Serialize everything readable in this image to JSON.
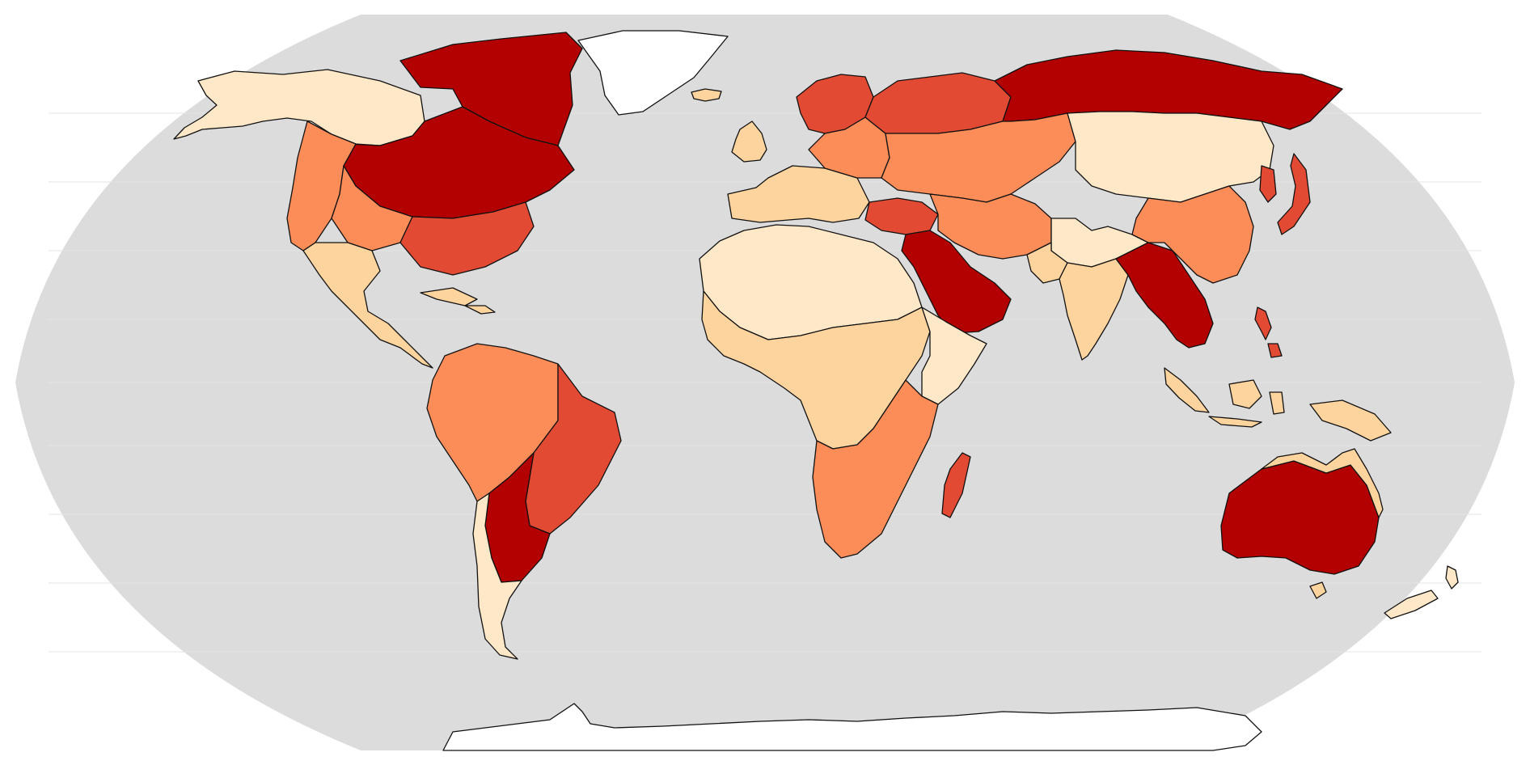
{
  "map": {
    "projection": "Robinson",
    "ocean_color": "#dcdcdc",
    "unclassified_color": "#ffffff",
    "boundary_color": "#111111",
    "legend": "none",
    "classes": [
      {
        "level": 1,
        "color": "#fee8c8"
      },
      {
        "level": 2,
        "color": "#fdd49e"
      },
      {
        "level": 3,
        "color": "#fc8d59"
      },
      {
        "level": 4,
        "color": "#e34a33"
      },
      {
        "level": 5,
        "color": "#b30000"
      }
    ],
    "regions": [
      {
        "id": "alaska-yukon",
        "level": 1
      },
      {
        "id": "canada-north",
        "level": 5
      },
      {
        "id": "canada-east-great-lakes",
        "level": 5
      },
      {
        "id": "us-west-coast",
        "level": 3
      },
      {
        "id": "us-great-basin",
        "level": 3
      },
      {
        "id": "us-midwest-south",
        "level": 4
      },
      {
        "id": "mexico-central-america",
        "level": 2
      },
      {
        "id": "caribbean",
        "level": 2
      },
      {
        "id": "amazon-andes",
        "level": 3
      },
      {
        "id": "brazil-east",
        "level": 4
      },
      {
        "id": "la-plata",
        "level": 5
      },
      {
        "id": "patagonia-chile",
        "level": 1
      },
      {
        "id": "greenland",
        "level": 0
      },
      {
        "id": "iceland",
        "level": 2
      },
      {
        "id": "british-isles",
        "level": 2
      },
      {
        "id": "western-europe",
        "level": 2
      },
      {
        "id": "scandinavia-baltic",
        "level": 4
      },
      {
        "id": "eastern-europe",
        "level": 3
      },
      {
        "id": "russia-west",
        "level": 4
      },
      {
        "id": "siberia-far-east",
        "level": 5
      },
      {
        "id": "central-asia",
        "level": 3
      },
      {
        "id": "mongolia-north-china",
        "level": 1
      },
      {
        "id": "turkey-caucasus",
        "level": 4
      },
      {
        "id": "arabia-iraq",
        "level": 5
      },
      {
        "id": "iran-afghanistan",
        "level": 3
      },
      {
        "id": "tibet",
        "level": 1
      },
      {
        "id": "indus",
        "level": 2
      },
      {
        "id": "india",
        "level": 2
      },
      {
        "id": "ganges-mekong",
        "level": 5
      },
      {
        "id": "china-south-east",
        "level": 3
      },
      {
        "id": "korea-japan",
        "level": 4
      },
      {
        "id": "philippines",
        "level": 4
      },
      {
        "id": "indonesia-png",
        "level": 2
      },
      {
        "id": "sahara",
        "level": 1
      },
      {
        "id": "sahel-central-africa",
        "level": 2
      },
      {
        "id": "horn-of-africa",
        "level": 1
      },
      {
        "id": "southern-africa",
        "level": 3
      },
      {
        "id": "madagascar",
        "level": 4
      },
      {
        "id": "australia-interior",
        "level": 5
      },
      {
        "id": "australia-coast",
        "level": 2
      },
      {
        "id": "new-zealand",
        "level": 1
      },
      {
        "id": "antarctica",
        "level": 0
      }
    ]
  }
}
